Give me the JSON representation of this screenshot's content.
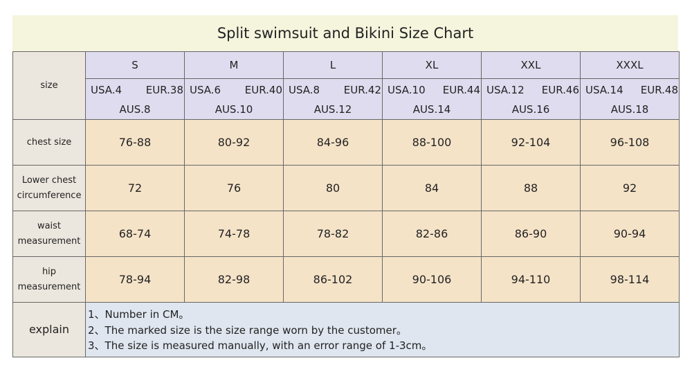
{
  "title": "Split swimsuit and Bikini Size Chart",
  "table": {
    "row_header": "size",
    "sizes": [
      "S",
      "M",
      "L",
      "XL",
      "XXL",
      "XXXL"
    ],
    "regions": [
      [
        "USA.4",
        "EUR.38",
        "AUS.8"
      ],
      [
        "USA.6",
        "EUR.40",
        "AUS.10"
      ],
      [
        "USA.8",
        "EUR.42",
        "AUS.12"
      ],
      [
        "USA.10",
        "EUR.44",
        "AUS.14"
      ],
      [
        "USA.12",
        "EUR.46",
        "AUS.16"
      ],
      [
        "USA.14",
        "EUR.48",
        "AUS.18"
      ]
    ],
    "rows": [
      {
        "label": "chest size",
        "values": [
          "76-88",
          "80-92",
          "84-96",
          "88-100",
          "92-104",
          "96-108"
        ]
      },
      {
        "label": "Lower chest circumference",
        "values": [
          "72",
          "76",
          "80",
          "84",
          "88",
          "92"
        ]
      },
      {
        "label": "waist measurement",
        "values": [
          "68-74",
          "74-78",
          "78-82",
          "82-86",
          "86-90",
          "90-94"
        ]
      },
      {
        "label": "hip measurement",
        "values": [
          "78-94",
          "82-98",
          "86-102",
          "90-106",
          "94-110",
          "98-114"
        ]
      }
    ],
    "explain": {
      "label": "explain",
      "notes": [
        "1、Number in CM。",
        "2、The marked size is the size range worn by the customer。",
        "3、The size is measured manually, with an error range of 1-3cm。"
      ]
    }
  }
}
